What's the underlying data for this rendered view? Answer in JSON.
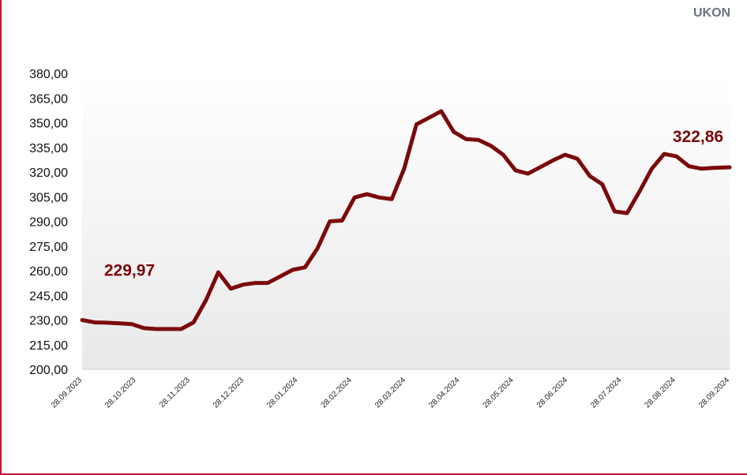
{
  "brand": {
    "text": "UKON"
  },
  "colors": {
    "line": "#7b0a0a",
    "frame": "#c8102e",
    "plot_bg_top": "#ffffff",
    "plot_bg_bottom": "#e9e9e9"
  },
  "chart_data": {
    "type": "line",
    "title": "",
    "xlabel": "",
    "ylabel": "",
    "ylim": [
      200,
      380
    ],
    "y_ticks": [
      "200,00",
      "215,00",
      "230,00",
      "245,00",
      "260,00",
      "275,00",
      "290,00",
      "305,00",
      "320,00",
      "335,00",
      "350,00",
      "365,00",
      "380,00"
    ],
    "x_ticks": [
      "28.09.2023",
      "28.10.2023",
      "28.11.2023",
      "28.12.2023",
      "28.01.2024",
      "28.02.2024",
      "28.03.2024",
      "28.04.2024",
      "28.05.2024",
      "28.06.2024",
      "28.07.2024",
      "28.08.2024",
      "28.09.2024"
    ],
    "x_range": [
      "2023-09-28",
      "2024-09-28"
    ],
    "grid": false,
    "series": [
      {
        "x": [
          "2023-09-28",
          "2023-10-05",
          "2023-10-12",
          "2023-10-19",
          "2023-10-26",
          "2023-11-02",
          "2023-11-09",
          "2023-11-16",
          "2023-11-23",
          "2023-11-30",
          "2023-12-07",
          "2023-12-14",
          "2023-12-21",
          "2023-12-28",
          "2024-01-04",
          "2024-01-11",
          "2024-01-18",
          "2024-01-25",
          "2024-02-01",
          "2024-02-08",
          "2024-02-15",
          "2024-02-22",
          "2024-02-29",
          "2024-03-07",
          "2024-03-14",
          "2024-03-21",
          "2024-03-28",
          "2024-04-04",
          "2024-04-11",
          "2024-04-18",
          "2024-04-25",
          "2024-05-02",
          "2024-05-09",
          "2024-05-16",
          "2024-05-23",
          "2024-05-30",
          "2024-06-06",
          "2024-06-13",
          "2024-06-20",
          "2024-06-27",
          "2024-07-04",
          "2024-07-11",
          "2024-07-18",
          "2024-07-25",
          "2024-08-01",
          "2024-08-08",
          "2024-08-15",
          "2024-08-22",
          "2024-08-29",
          "2024-09-05",
          "2024-09-12",
          "2024-09-19",
          "2024-09-28"
        ],
        "values": [
          229.97,
          228.5,
          228.3,
          228.0,
          227.5,
          225.0,
          224.5,
          224.5,
          224.5,
          228.5,
          242.0,
          259.0,
          249.0,
          251.5,
          252.5,
          252.5,
          256.5,
          260.5,
          262.0,
          273.5,
          290.0,
          290.5,
          304.5,
          306.5,
          304.5,
          303.5,
          322.0,
          349.0,
          353.0,
          357.0,
          344.5,
          340.0,
          339.5,
          336.0,
          330.5,
          321.0,
          319.0,
          323.0,
          327.0,
          330.5,
          328.0,
          317.5,
          312.5,
          296.0,
          295.0,
          308.0,
          322.0,
          331.0,
          329.5,
          323.5,
          322.0,
          322.5,
          322.86
        ]
      }
    ],
    "annotations": [
      {
        "text": "229,97",
        "x": "2023-09-28",
        "y": 229.97
      },
      {
        "text": "322,86",
        "x": "2024-09-28",
        "y": 322.86
      }
    ]
  }
}
